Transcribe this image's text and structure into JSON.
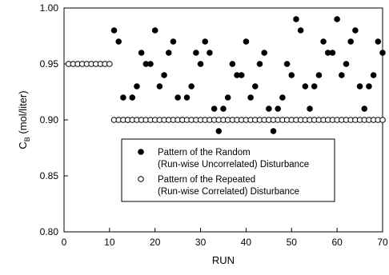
{
  "chart_data": {
    "type": "scatter",
    "xlabel": "RUN",
    "ylabel_main": "C",
    "ylabel_sub": "B",
    "ylabel_unit": " (mol/liter)",
    "xlim": [
      0,
      70
    ],
    "ylim": [
      0.8,
      1.0
    ],
    "x_ticks": [
      0,
      10,
      20,
      30,
      40,
      50,
      60,
      70
    ],
    "x_tick_labels": [
      "0",
      "10",
      "20",
      "30",
      "40",
      "50",
      "60",
      "70"
    ],
    "y_ticks": [
      0.8,
      0.85,
      0.9,
      0.95,
      1.0
    ],
    "y_tick_labels": [
      "0.80",
      "0.85",
      "0.90",
      "0.95",
      "1.00"
    ],
    "grid": false,
    "legend_placement": "lower-center",
    "series": [
      {
        "name_line1": "Pattern of the Random",
        "name_line2": "(Run-wise Uncorrelated) Disturbance",
        "marker": "filled-circle",
        "x": [
          11,
          12,
          13,
          14,
          15,
          16,
          17,
          18,
          19,
          20,
          21,
          22,
          23,
          24,
          25,
          26,
          27,
          28,
          29,
          30,
          31,
          32,
          33,
          34,
          35,
          36,
          37,
          38,
          39,
          40,
          41,
          42,
          43,
          44,
          45,
          46,
          47,
          48,
          49,
          50,
          51,
          52,
          53,
          54,
          55,
          56,
          57,
          58,
          59,
          60,
          61,
          62,
          63,
          64,
          65,
          66,
          67,
          68,
          69,
          70
        ],
        "y": [
          0.98,
          0.97,
          0.92,
          0.9,
          0.92,
          0.93,
          0.96,
          0.95,
          0.95,
          0.98,
          0.93,
          0.94,
          0.96,
          0.97,
          0.92,
          0.9,
          0.92,
          0.93,
          0.96,
          0.95,
          0.97,
          0.96,
          0.91,
          0.89,
          0.91,
          0.92,
          0.95,
          0.94,
          0.94,
          0.97,
          0.92,
          0.93,
          0.95,
          0.96,
          0.91,
          0.89,
          0.91,
          0.92,
          0.95,
          0.94,
          0.99,
          0.98,
          0.93,
          0.91,
          0.93,
          0.94,
          0.97,
          0.96,
          0.96,
          0.99,
          0.94,
          0.95,
          0.97,
          0.98,
          0.93,
          0.91,
          0.93,
          0.94,
          0.97,
          0.96
        ]
      },
      {
        "name_line1": "Pattern of the Repeated",
        "name_line2": "(Run-wise Correlated) Disturbance",
        "marker": "open-circle",
        "x": [
          1,
          2,
          3,
          4,
          5,
          6,
          7,
          8,
          9,
          10,
          11,
          12,
          13,
          14,
          15,
          16,
          17,
          18,
          19,
          20,
          21,
          22,
          23,
          24,
          25,
          26,
          27,
          28,
          29,
          30,
          31,
          32,
          33,
          34,
          35,
          36,
          37,
          38,
          39,
          40,
          41,
          42,
          43,
          44,
          45,
          46,
          47,
          48,
          49,
          50,
          51,
          52,
          53,
          54,
          55,
          56,
          57,
          58,
          59,
          60,
          61,
          62,
          63,
          64,
          65,
          66,
          67,
          68,
          69,
          70
        ],
        "y": [
          0.95,
          0.95,
          0.95,
          0.95,
          0.95,
          0.95,
          0.95,
          0.95,
          0.95,
          0.95,
          0.9,
          0.9,
          0.9,
          0.9,
          0.9,
          0.9,
          0.9,
          0.9,
          0.9,
          0.9,
          0.9,
          0.9,
          0.9,
          0.9,
          0.9,
          0.9,
          0.9,
          0.9,
          0.9,
          0.9,
          0.9,
          0.9,
          0.9,
          0.9,
          0.9,
          0.9,
          0.9,
          0.9,
          0.9,
          0.9,
          0.9,
          0.9,
          0.9,
          0.9,
          0.9,
          0.9,
          0.9,
          0.9,
          0.9,
          0.9,
          0.9,
          0.9,
          0.9,
          0.9,
          0.9,
          0.9,
          0.9,
          0.9,
          0.9,
          0.9,
          0.9,
          0.9,
          0.9,
          0.9,
          0.9,
          0.9,
          0.9,
          0.9,
          0.9,
          0.9
        ]
      }
    ],
    "colors": {
      "axis": "#000000",
      "marker_fill": "#000000",
      "open_marker_fill": "#ffffff",
      "background": "#ffffff"
    }
  }
}
